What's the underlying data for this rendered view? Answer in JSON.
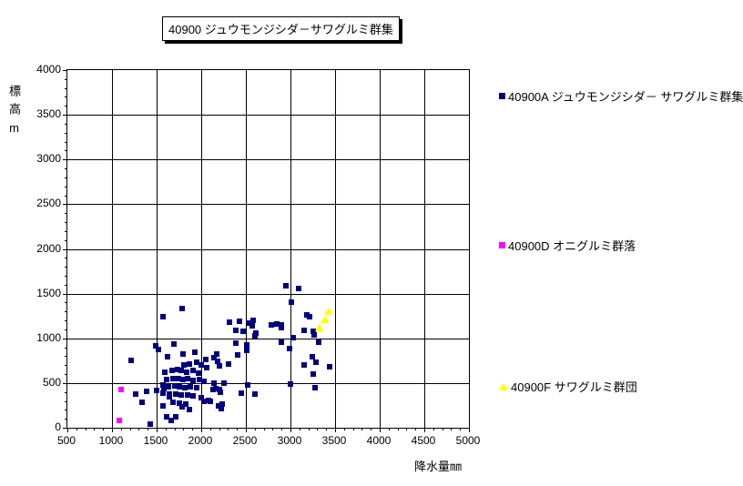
{
  "title": "40900 ジュウモンジシダ－サワグルミ群集",
  "axes": {
    "x_title": "降水量㎜",
    "y_title": "標高m"
  },
  "legend": {
    "items": [
      {
        "id": "40900A",
        "label": "40900A ジュウモンジシダ－ サワグルミ群集",
        "marker": "square",
        "color": "#000080"
      },
      {
        "id": "40900D",
        "label": "40900D オニグルミ群落",
        "marker": "square",
        "color": "#FF00FF"
      },
      {
        "id": "40900F",
        "label": "40900F サワグルミ群団",
        "marker": "triangle",
        "color": "#FFFF00"
      }
    ]
  },
  "chart_data": {
    "type": "scatter",
    "title": "40900 ジュウモンジシダ－サワグルミ群集",
    "xlabel": "降水量㎜",
    "ylabel": "標高m",
    "xlim": [
      500,
      5000
    ],
    "ylim": [
      0,
      4000
    ],
    "x_ticks": [
      500,
      1000,
      1500,
      2000,
      2500,
      3000,
      3500,
      4000,
      4500,
      5000
    ],
    "y_ticks": [
      0,
      500,
      1000,
      1500,
      2000,
      2500,
      3000,
      3500,
      4000
    ],
    "minor_tick_step": 100,
    "grid": true,
    "grid_color": "#000000",
    "legend_position": "right",
    "series": [
      {
        "name": "40900A ジュウモンジシダ－サワグルミ群集",
        "marker": "square",
        "color": "#000080",
        "points": [
          [
            1790,
            1330
          ],
          [
            1570,
            1240
          ],
          [
            1210,
            750
          ],
          [
            1490,
            920
          ],
          [
            1520,
            880
          ],
          [
            1690,
            940
          ],
          [
            1930,
            840
          ],
          [
            1270,
            380
          ],
          [
            1390,
            410
          ],
          [
            1340,
            280
          ],
          [
            1430,
            40
          ],
          [
            1580,
            435
          ],
          [
            1640,
            350
          ],
          [
            1570,
            240
          ],
          [
            1610,
            120
          ],
          [
            1660,
            80
          ],
          [
            1710,
            120
          ],
          [
            1790,
            230
          ],
          [
            1870,
            200
          ],
          [
            2320,
            1180
          ],
          [
            2430,
            1190
          ],
          [
            2540,
            1170
          ],
          [
            2570,
            1140
          ],
          [
            2470,
            1080
          ],
          [
            2610,
            1060
          ],
          [
            2600,
            1030
          ],
          [
            2390,
            1090
          ],
          [
            2390,
            950
          ],
          [
            2510,
            930
          ],
          [
            2510,
            870
          ],
          [
            2410,
            810
          ],
          [
            2310,
            710
          ],
          [
            2580,
            1200
          ],
          [
            2790,
            1150
          ],
          [
            2850,
            1160
          ],
          [
            2900,
            1150
          ],
          [
            2900,
            1120
          ],
          [
            2900,
            955
          ],
          [
            2990,
            890
          ],
          [
            2950,
            1590
          ],
          [
            3090,
            1560
          ],
          [
            3010,
            1400
          ],
          [
            3180,
            1260
          ],
          [
            3210,
            1240
          ],
          [
            3150,
            1090
          ],
          [
            3250,
            1080
          ],
          [
            3270,
            1040
          ],
          [
            3030,
            1010
          ],
          [
            3320,
            960
          ],
          [
            3240,
            790
          ],
          [
            3290,
            730
          ],
          [
            3150,
            700
          ],
          [
            3250,
            600
          ],
          [
            3440,
            680
          ],
          [
            3000,
            490
          ],
          [
            3280,
            450
          ],
          [
            2140,
            500
          ],
          [
            2250,
            500
          ],
          [
            2130,
            430
          ],
          [
            2160,
            435
          ],
          [
            2200,
            430
          ],
          [
            2450,
            390
          ],
          [
            2520,
            480
          ],
          [
            2600,
            380
          ],
          [
            2190,
            240
          ],
          [
            2220,
            215
          ],
          [
            2100,
            300
          ],
          [
            2030,
            300
          ],
          [
            2210,
            400
          ],
          [
            2230,
            260
          ],
          [
            1620,
            790
          ],
          [
            1800,
            820
          ],
          [
            1810,
            700
          ],
          [
            1870,
            710
          ],
          [
            2000,
            700
          ],
          [
            2060,
            670
          ],
          [
            2140,
            780
          ],
          [
            2170,
            820
          ],
          [
            2050,
            760
          ],
          [
            2180,
            740
          ],
          [
            1950,
            730
          ],
          [
            2200,
            690
          ],
          [
            1590,
            620
          ],
          [
            1670,
            640
          ],
          [
            1730,
            650
          ],
          [
            1780,
            640
          ],
          [
            1840,
            620
          ],
          [
            1910,
            640
          ],
          [
            1970,
            610
          ],
          [
            1610,
            540
          ],
          [
            1680,
            545
          ],
          [
            1740,
            550
          ],
          [
            1800,
            540
          ],
          [
            1850,
            545
          ],
          [
            1910,
            525
          ],
          [
            1980,
            540
          ],
          [
            2030,
            515
          ],
          [
            1570,
            475
          ],
          [
            1630,
            460
          ],
          [
            1700,
            470
          ],
          [
            1760,
            460
          ],
          [
            1820,
            450
          ],
          [
            1880,
            460
          ],
          [
            1950,
            450
          ],
          [
            1500,
            415
          ],
          [
            1570,
            390
          ],
          [
            1640,
            380
          ],
          [
            1710,
            375
          ],
          [
            1780,
            370
          ],
          [
            1850,
            370
          ],
          [
            1910,
            360
          ],
          [
            2000,
            340
          ],
          [
            2080,
            310
          ],
          [
            1680,
            280
          ],
          [
            1760,
            270
          ],
          [
            1830,
            265
          ]
        ]
      },
      {
        "name": "40900D オニグルミ群落",
        "marker": "square",
        "color": "#FF00FF",
        "points": [
          [
            1100,
            425
          ],
          [
            1080,
            80
          ]
        ]
      },
      {
        "name": "40900F サワグルミ群団",
        "marker": "triangle",
        "color": "#FFFF00",
        "points": [
          [
            3330,
            1120
          ],
          [
            3390,
            1215
          ],
          [
            3430,
            1300
          ]
        ]
      }
    ]
  }
}
